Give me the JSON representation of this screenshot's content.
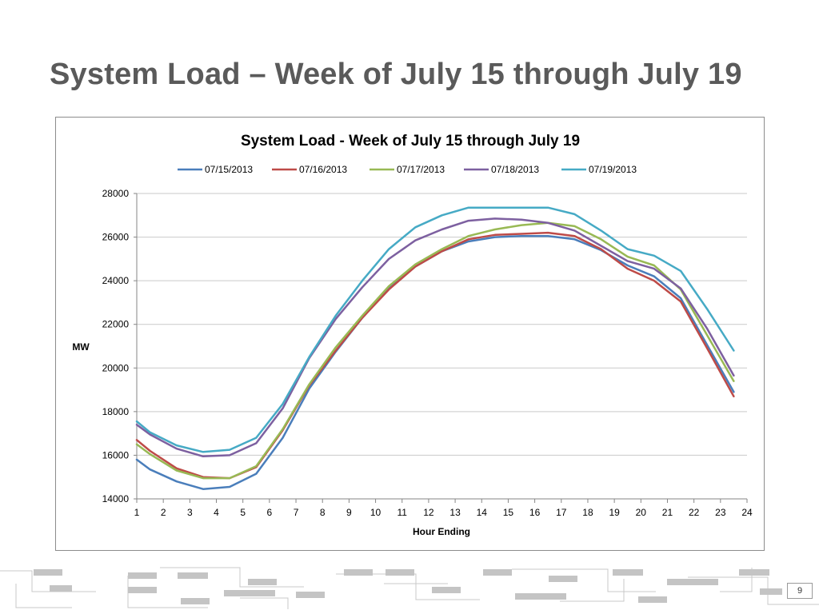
{
  "slide": {
    "title": "System Load – Week of July 15 through July 19",
    "page_number": "9"
  },
  "chart_data": {
    "type": "line",
    "title": "System Load - Week of July 15 through July 19",
    "xlabel": "Hour Ending",
    "ylabel": "MW",
    "xlim": [
      1,
      24
    ],
    "ylim": [
      14000,
      28000
    ],
    "x_ticks": [
      "1",
      "2",
      "3",
      "4",
      "5",
      "6",
      "7",
      "8",
      "9",
      "10",
      "11",
      "12",
      "13",
      "14",
      "15",
      "16",
      "17",
      "18",
      "19",
      "20",
      "21",
      "22",
      "23",
      "24"
    ],
    "y_ticks": [
      "14000",
      "16000",
      "18000",
      "20000",
      "22000",
      "24000",
      "26000",
      "28000"
    ],
    "grid": "horizontal",
    "legend_position": "top",
    "x": [
      1,
      1.5,
      2.5,
      3.5,
      4.5,
      5.5,
      6.5,
      7.5,
      8.5,
      9.5,
      10.5,
      11.5,
      12.5,
      13.5,
      14.5,
      15.5,
      16.5,
      17.5,
      18.5,
      19.5,
      20.5,
      21.5,
      22.5,
      23.5
    ],
    "series": [
      {
        "name": "07/15/2013",
        "color": "#4a7ebb",
        "values": [
          15800,
          15350,
          14800,
          14450,
          14550,
          15150,
          16800,
          19050,
          20750,
          22300,
          23650,
          24650,
          25350,
          25800,
          26000,
          26050,
          26050,
          25900,
          25400,
          24700,
          24200,
          23200,
          21050,
          18900
        ]
      },
      {
        "name": "07/16/2013",
        "color": "#be4b48",
        "values": [
          16700,
          16200,
          15400,
          15000,
          14950,
          15450,
          17150,
          19200,
          20800,
          22300,
          23600,
          24650,
          25350,
          25900,
          26100,
          26150,
          26200,
          26050,
          25450,
          24550,
          24000,
          23050,
          20900,
          18700
        ]
      },
      {
        "name": "07/17/2013",
        "color": "#98b954",
        "values": [
          16500,
          16050,
          15300,
          14950,
          14950,
          15500,
          17200,
          19250,
          20950,
          22400,
          23750,
          24750,
          25450,
          26050,
          26350,
          26550,
          26650,
          26500,
          25900,
          25100,
          24700,
          23600,
          21500,
          19400
        ]
      },
      {
        "name": "07/18/2013",
        "color": "#7d60a0",
        "values": [
          17400,
          16950,
          16300,
          15950,
          16000,
          16550,
          18150,
          20450,
          22250,
          23700,
          25000,
          25850,
          26350,
          26750,
          26850,
          26800,
          26650,
          26300,
          25600,
          24900,
          24550,
          23650,
          21800,
          19650
        ]
      },
      {
        "name": "07/19/2013",
        "color": "#46aac5",
        "values": [
          17550,
          17050,
          16450,
          16150,
          16250,
          16800,
          18350,
          20500,
          22400,
          24000,
          25450,
          26450,
          27000,
          27350,
          27350,
          27350,
          27350,
          27050,
          26300,
          25450,
          25150,
          24450,
          22700,
          20800
        ]
      }
    ]
  }
}
